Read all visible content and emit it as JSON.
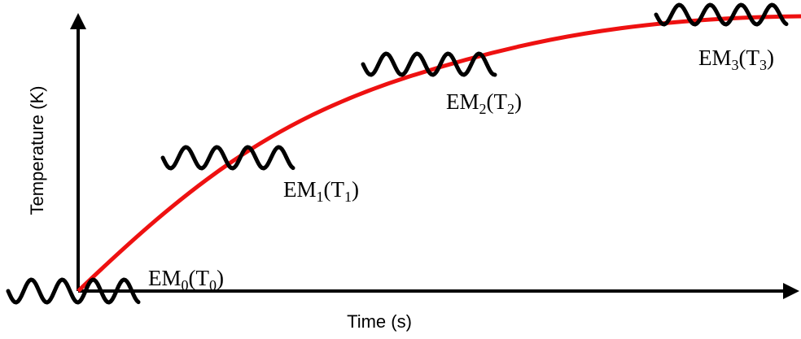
{
  "axes": {
    "x_label": "Time (s)",
    "y_label": "Temperature (K)"
  },
  "colors": {
    "curve": "#ee1111",
    "axis": "#000000",
    "wave": "#000000"
  },
  "states": [
    {
      "name": "EM",
      "sub": "0",
      "open": "(T",
      "tsub": "0",
      "close": ")"
    },
    {
      "name": "EM",
      "sub": "1",
      "open": "(T",
      "tsub": "1",
      "close": ")"
    },
    {
      "name": "EM",
      "sub": "2",
      "open": "(T",
      "tsub": "2",
      "close": ")"
    },
    {
      "name": "EM",
      "sub": "3",
      "open": "(T",
      "tsub": "3",
      "close": ")"
    }
  ]
}
